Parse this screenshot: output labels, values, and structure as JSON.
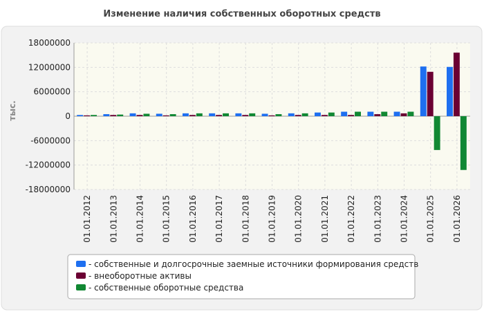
{
  "chart_data": {
    "type": "bar",
    "title": "Изменение наличия собственных оборотных средств",
    "y_label": "тыс.",
    "categories": [
      "01.01.2012",
      "01.01.2013",
      "01.01.2014",
      "01.01.2015",
      "01.01.2016",
      "01.01.2017",
      "01.01.2018",
      "01.01.2019",
      "01.01.2020",
      "01.01.2021",
      "01.01.2022",
      "01.01.2023",
      "01.01.2024",
      "01.01.2025",
      "01.01.2026"
    ],
    "series": [
      {
        "name": "- собственные и долгосрочные заемные источники формирования средств",
        "color": "#1e6ff0",
        "values": [
          300000,
          500000,
          700000,
          600000,
          700000,
          700000,
          700000,
          600000,
          700000,
          900000,
          1100000,
          1100000,
          1100000,
          12200000,
          12100000
        ]
      },
      {
        "name": "- внеоборотные активы",
        "color": "#6b0033",
        "values": [
          200000,
          300000,
          300000,
          200000,
          300000,
          300000,
          300000,
          200000,
          300000,
          300000,
          300000,
          500000,
          700000,
          10900000,
          15600000
        ]
      },
      {
        "name": "- собственные оборотные средства",
        "color": "#118833",
        "values": [
          300000,
          400000,
          600000,
          500000,
          700000,
          700000,
          700000,
          500000,
          700000,
          900000,
          1100000,
          1100000,
          1100000,
          -8300000,
          -13200000
        ]
      }
    ],
    "ylim": [
      -18000000,
      18000000
    ],
    "yticks": [
      -18000000,
      -12000000,
      -6000000,
      0,
      6000000,
      12000000,
      18000000
    ],
    "grid": true
  }
}
